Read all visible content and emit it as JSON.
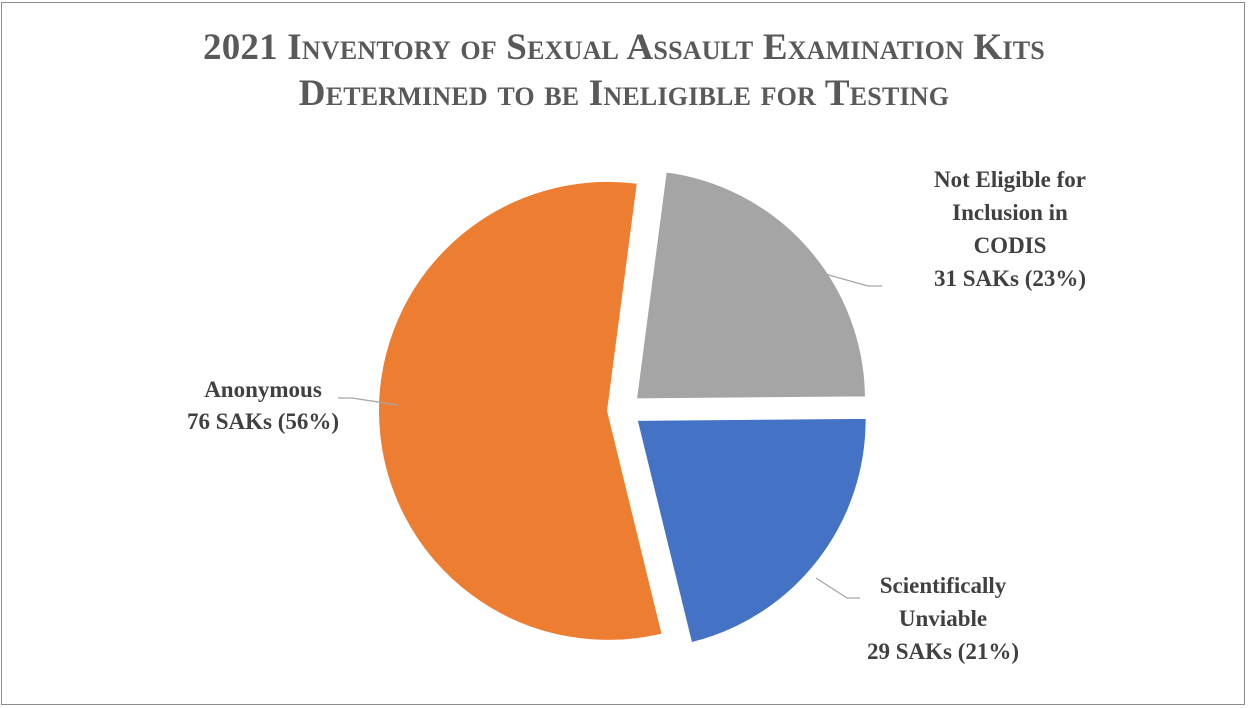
{
  "chart_data": {
    "type": "pie",
    "title_lines": [
      "2021 Inventory of Sexual Assault Examination Kits",
      "Determined to be Ineligible for Testing"
    ],
    "slices": [
      {
        "name": "Anonymous",
        "value": 76,
        "percent": 56,
        "color": "#ED7D31",
        "label_lines": [
          "Anonymous",
          "76 SAKs (56%)"
        ]
      },
      {
        "name": "Not Eligible for Inclusion in CODIS",
        "value": 31,
        "percent": 23,
        "color": "#A5A5A5",
        "label_lines": [
          "Not Eligible for",
          "Inclusion in",
          "CODIS",
          "31 SAKs (23%)"
        ]
      },
      {
        "name": "Scientifically Unviable",
        "value": 29,
        "percent": 21,
        "color": "#4472C4",
        "label_lines": [
          "Scientifically",
          "Unviable",
          "29 SAKs (21%)"
        ]
      }
    ],
    "exploded": true,
    "legend": "none"
  }
}
